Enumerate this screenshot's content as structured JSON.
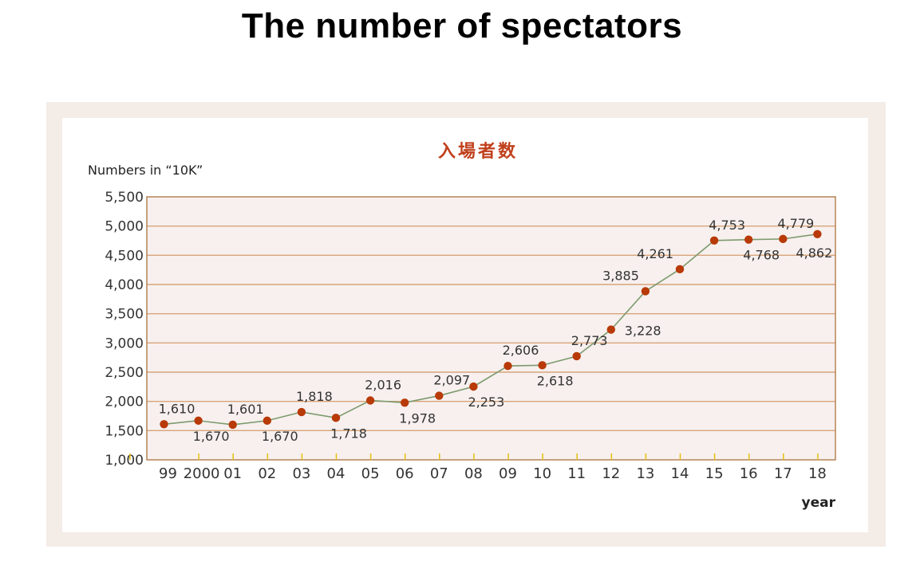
{
  "page": {
    "title": "The number of spectators"
  },
  "chart_data": {
    "type": "line",
    "title": "入場者数",
    "ylabel": "Numbers in “10K”",
    "xlabel": "year",
    "categories": [
      "99",
      "2000",
      "01",
      "02",
      "03",
      "04",
      "05",
      "06",
      "07",
      "08",
      "09",
      "10",
      "11",
      "12",
      "13",
      "14",
      "15",
      "16",
      "17",
      "18"
    ],
    "series": [
      {
        "values": [
          1610,
          1670,
          1601,
          1670,
          1818,
          1718,
          2016,
          1978,
          2097,
          2253,
          2606,
          2618,
          2773,
          3228,
          3885,
          4261,
          4753,
          4768,
          4779,
          4862
        ]
      }
    ],
    "value_labels": [
      "1,610",
      "1,670",
      "1,601",
      "1,670",
      "1,818",
      "1,718",
      "2,016",
      "1,978",
      "2,097",
      "2,253",
      "2,606",
      "2,618",
      "2,773",
      "3,228",
      "3,885",
      "4,261",
      "4,753",
      "4,768",
      "4,779",
      "4,862"
    ],
    "ylim": [
      1000,
      5500
    ],
    "yticks": [
      1000,
      1500,
      2000,
      2500,
      3000,
      3500,
      4000,
      4500,
      5000,
      5500
    ],
    "ytick_labels": [
      "1,000",
      "1,500",
      "2,000",
      "2,500",
      "3,000",
      "3,500",
      "4,000",
      "4,500",
      "5,000",
      "5,500"
    ],
    "grid": true,
    "colors": {
      "title": "#c0401c",
      "line": "#7d9a6e",
      "marker": "#b83a08",
      "grid": "#d8a47a",
      "border": "#b07a4a",
      "tick": "#e6c21c",
      "plot_bg": "#f7f0ee",
      "frame_bg": "#f4ece7",
      "text": "#333333"
    }
  }
}
